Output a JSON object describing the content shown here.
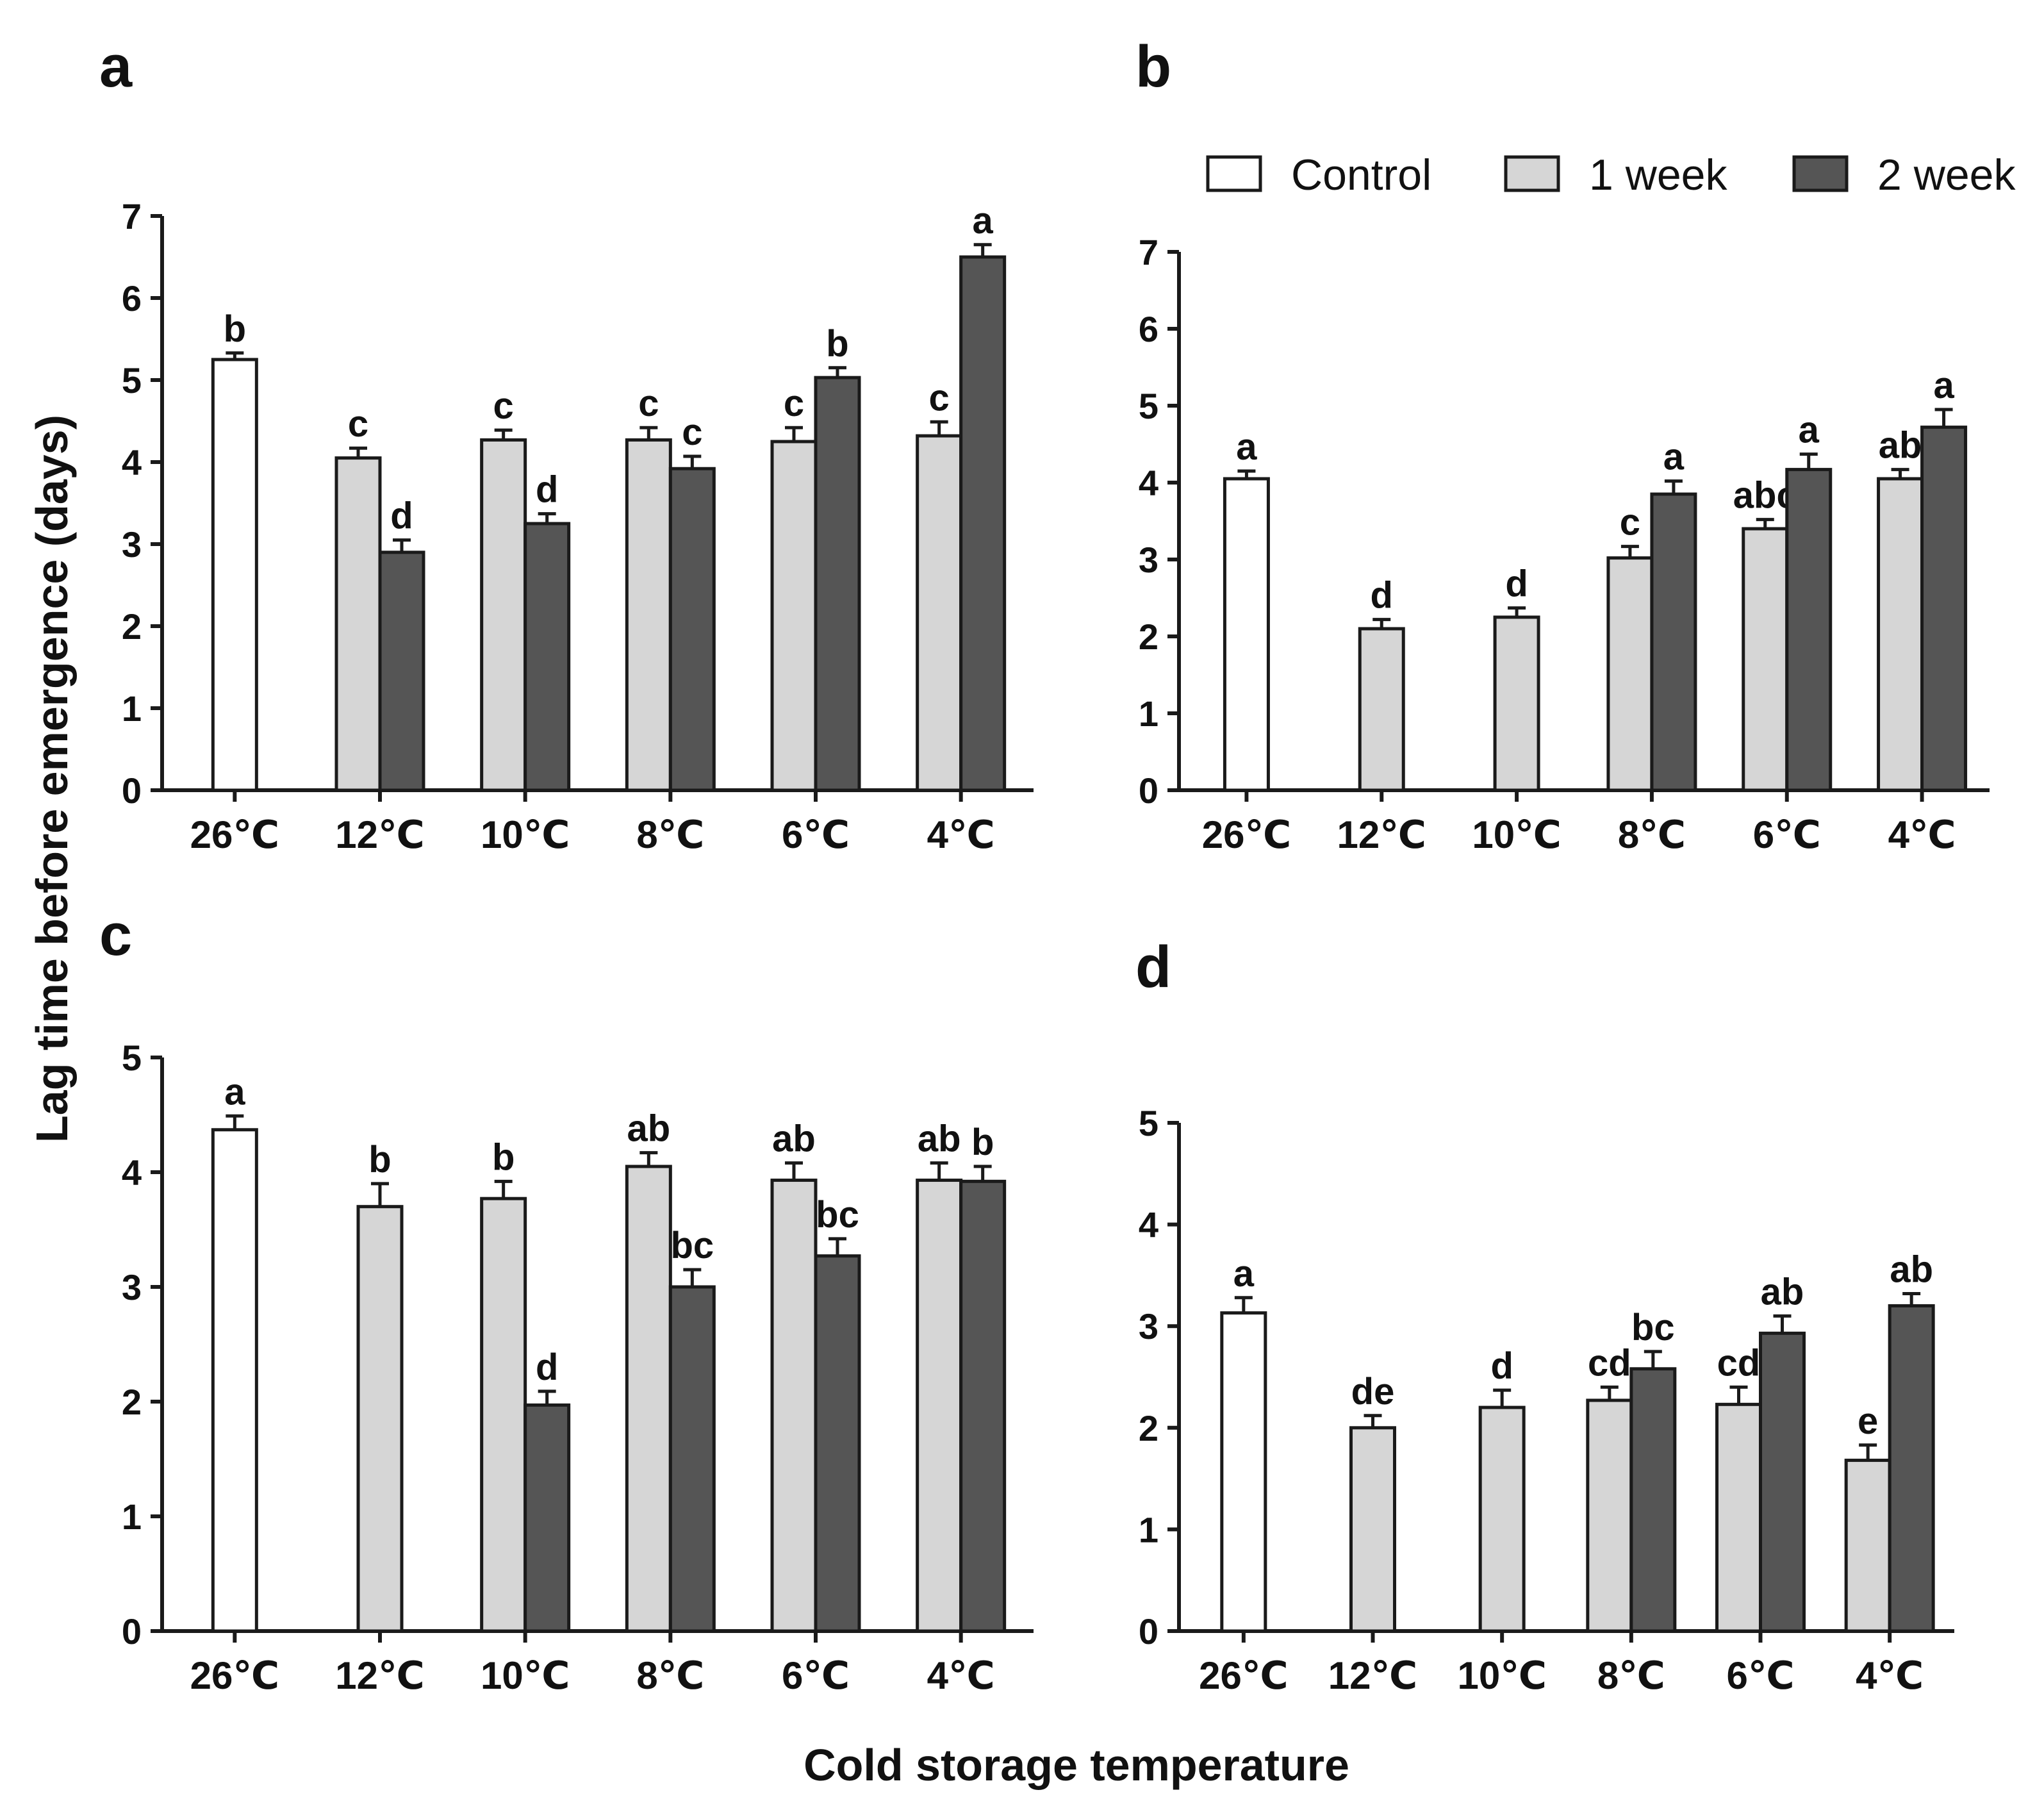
{
  "colors": {
    "Control": "#ffffff",
    "1 week": "#d6d6d6",
    "2 week": "#555555",
    "stroke": "#1a1a1a"
  },
  "figure": {
    "ylabel": "Lag time before emergence (days)",
    "xlabel": "Cold storage temperature",
    "legend": [
      "Control",
      "1 week",
      "2 week"
    ]
  },
  "chart_data": [
    {
      "panel": "a",
      "type": "bar",
      "categories": [
        "26℃",
        "12℃",
        "10℃",
        "8℃",
        "6℃",
        "4℃"
      ],
      "ylim": [
        0,
        7
      ],
      "yticks": [
        0,
        1,
        2,
        3,
        4,
        5,
        6,
        7
      ],
      "series": [
        {
          "name": "Control",
          "values": [
            5.25,
            null,
            null,
            null,
            null,
            null
          ],
          "errors": [
            0.08,
            null,
            null,
            null,
            null,
            null
          ],
          "labels": [
            "b",
            null,
            null,
            null,
            null,
            null
          ]
        },
        {
          "name": "1 week",
          "values": [
            null,
            4.05,
            4.27,
            4.27,
            4.25,
            4.32
          ],
          "errors": [
            null,
            0.12,
            0.12,
            0.15,
            0.17,
            0.17
          ],
          "labels": [
            null,
            "c",
            "c",
            "c",
            "c",
            "c"
          ]
        },
        {
          "name": "2 week",
          "values": [
            null,
            2.9,
            3.25,
            3.92,
            5.03,
            6.5
          ],
          "errors": [
            null,
            0.15,
            0.12,
            0.15,
            0.12,
            0.15
          ],
          "labels": [
            null,
            "d",
            "d",
            "c",
            "b",
            "a"
          ]
        }
      ]
    },
    {
      "panel": "b",
      "type": "bar",
      "categories": [
        "26℃",
        "12℃",
        "10℃",
        "8℃",
        "6℃",
        "4℃"
      ],
      "ylim": [
        0,
        7
      ],
      "yticks": [
        0,
        1,
        2,
        3,
        4,
        5,
        6,
        7
      ],
      "series": [
        {
          "name": "Control",
          "values": [
            4.05,
            null,
            null,
            null,
            null,
            null
          ],
          "errors": [
            0.1,
            null,
            null,
            null,
            null,
            null
          ],
          "labels": [
            "a",
            null,
            null,
            null,
            null,
            null
          ]
        },
        {
          "name": "1 week",
          "values": [
            null,
            2.1,
            2.25,
            3.02,
            3.4,
            4.05
          ],
          "errors": [
            null,
            0.12,
            0.12,
            0.15,
            0.12,
            0.12
          ],
          "labels": [
            null,
            "d",
            "d",
            "c",
            "abc",
            "ab"
          ]
        },
        {
          "name": "2 week",
          "values": [
            null,
            null,
            null,
            3.85,
            4.17,
            4.72
          ],
          "errors": [
            null,
            null,
            null,
            0.17,
            0.2,
            0.23
          ],
          "labels": [
            null,
            null,
            null,
            "a",
            "a",
            "a"
          ]
        }
      ]
    },
    {
      "panel": "c",
      "type": "bar",
      "categories": [
        "26℃",
        "12℃",
        "10℃",
        "8℃",
        "6℃",
        "4℃"
      ],
      "ylim": [
        0,
        5
      ],
      "yticks": [
        0,
        1,
        2,
        3,
        4,
        5
      ],
      "series": [
        {
          "name": "Control",
          "values": [
            4.37,
            null,
            null,
            null,
            null,
            null
          ],
          "errors": [
            0.12,
            null,
            null,
            null,
            null,
            null
          ],
          "labels": [
            "a",
            null,
            null,
            null,
            null,
            null
          ]
        },
        {
          "name": "1 week",
          "values": [
            null,
            3.7,
            3.77,
            4.05,
            3.93,
            3.93
          ],
          "errors": [
            null,
            0.2,
            0.15,
            0.12,
            0.15,
            0.15
          ],
          "labels": [
            null,
            "b",
            "b",
            "ab",
            "ab",
            "ab"
          ]
        },
        {
          "name": "2 week",
          "values": [
            null,
            null,
            1.97,
            3.0,
            3.27,
            3.92
          ],
          "errors": [
            null,
            null,
            0.12,
            0.15,
            0.15,
            0.13
          ],
          "labels": [
            null,
            null,
            "d",
            "bc",
            "bc",
            "b"
          ]
        }
      ]
    },
    {
      "panel": "d",
      "type": "bar",
      "categories": [
        "26℃",
        "12℃",
        "10℃",
        "8℃",
        "6℃",
        "4℃"
      ],
      "ylim": [
        0,
        5
      ],
      "yticks": [
        0,
        1,
        2,
        3,
        4,
        5
      ],
      "series": [
        {
          "name": "Control",
          "values": [
            3.13,
            null,
            null,
            null,
            null,
            null
          ],
          "errors": [
            0.15,
            null,
            null,
            null,
            null,
            null
          ],
          "labels": [
            "a",
            null,
            null,
            null,
            null,
            null
          ]
        },
        {
          "name": "1 week",
          "values": [
            null,
            2.0,
            2.2,
            2.27,
            2.23,
            1.68
          ],
          "errors": [
            null,
            0.12,
            0.17,
            0.13,
            0.17,
            0.15
          ],
          "labels": [
            null,
            "de",
            "d",
            "cd",
            "cd",
            "e"
          ]
        },
        {
          "name": "2 week",
          "values": [
            null,
            null,
            null,
            2.58,
            2.93,
            3.2
          ],
          "errors": [
            null,
            null,
            null,
            0.17,
            0.17,
            0.12
          ],
          "labels": [
            null,
            null,
            null,
            "bc",
            "ab",
            "ab"
          ]
        }
      ]
    }
  ]
}
